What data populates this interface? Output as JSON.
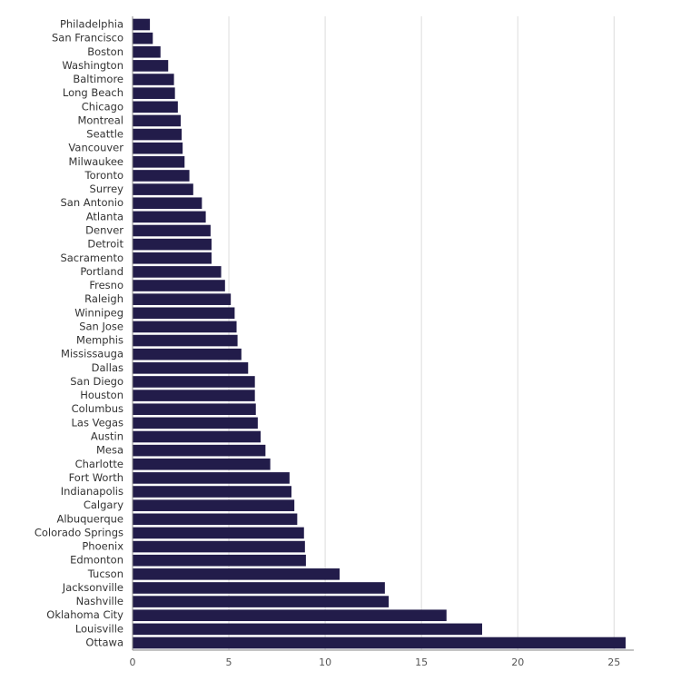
{
  "chart_data": {
    "type": "bar",
    "orientation": "horizontal",
    "title": "",
    "xlabel": "",
    "ylabel": "",
    "xlim": [
      0,
      25.6
    ],
    "xticks": [
      0,
      5,
      10,
      15,
      20,
      25
    ],
    "grid": true,
    "bar_color": "#221c4a",
    "categories": [
      "Philadelphia",
      "San Francisco",
      "Boston",
      "Washington",
      "Baltimore",
      "Long Beach",
      "Chicago",
      "Montreal",
      "Seattle",
      "Vancouver",
      "Milwaukee",
      "Toronto",
      "Surrey",
      "San Antonio",
      "Atlanta",
      "Denver",
      "Detroit",
      "Sacramento",
      "Portland",
      "Fresno",
      "Raleigh",
      "Winnipeg",
      "San Jose",
      "Memphis",
      "Mississauga",
      "Dallas",
      "San Diego",
      "Houston",
      "Columbus",
      "Las Vegas",
      "Austin",
      "Mesa",
      "Charlotte",
      "Fort Worth",
      "Indianapolis",
      "Calgary",
      "Albuquerque",
      "Colorado Springs",
      "Phoenix",
      "Edmonton",
      "Tucson",
      "Jacksonville",
      "Nashville",
      "Oklahoma City",
      "Louisville",
      "Ottawa"
    ],
    "values": [
      0.9,
      1.05,
      1.45,
      1.85,
      2.15,
      2.2,
      2.35,
      2.5,
      2.55,
      2.6,
      2.7,
      2.95,
      3.15,
      3.6,
      3.8,
      4.05,
      4.1,
      4.1,
      4.6,
      4.8,
      5.1,
      5.3,
      5.4,
      5.45,
      5.65,
      6.0,
      6.35,
      6.35,
      6.4,
      6.5,
      6.65,
      6.9,
      7.15,
      8.15,
      8.25,
      8.4,
      8.55,
      8.9,
      8.95,
      9.0,
      10.75,
      13.1,
      13.3,
      16.3,
      18.15,
      25.6
    ]
  }
}
